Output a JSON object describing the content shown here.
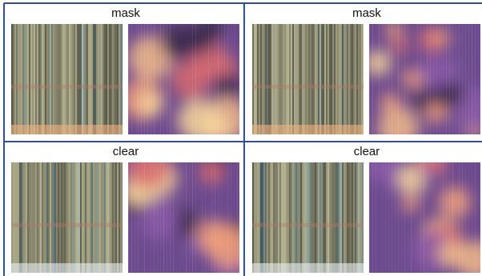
{
  "panels": [
    {
      "label": "mask"
    },
    {
      "label": "mask"
    },
    {
      "label": "clear"
    },
    {
      "label": "clear"
    }
  ]
}
